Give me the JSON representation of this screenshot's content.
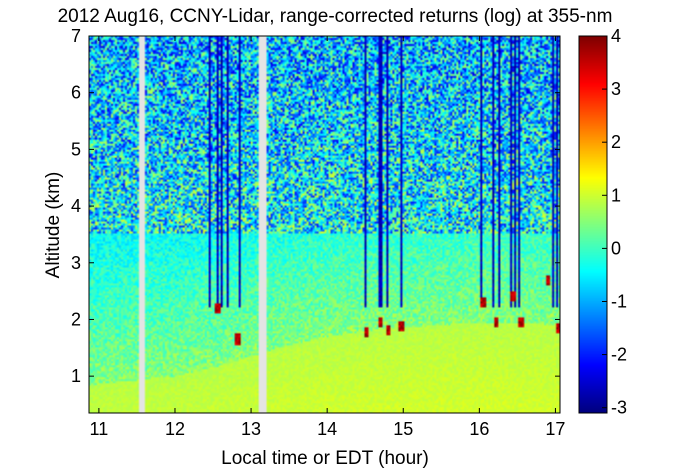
{
  "chart_data": {
    "type": "heatmap",
    "title": "2012 Aug16, CCNY-Lidar, range-corrected returns (log) at 355-nm",
    "xlabel": "Local time or EDT (hour)",
    "ylabel": "Altitude (km)",
    "xlim": [
      10.87,
      17.06
    ],
    "ylim": [
      0.35,
      7.0
    ],
    "xticks": [
      "11",
      "12",
      "13",
      "14",
      "15",
      "16",
      "17"
    ],
    "yticks": [
      "1",
      "2",
      "3",
      "4",
      "5",
      "6",
      "7"
    ],
    "colorbar": {
      "range": [
        -3.1,
        4.0
      ],
      "ticks": [
        "-3",
        "-2",
        "-1",
        "0",
        "1",
        "2",
        "3",
        "4"
      ],
      "colormap": "jet"
    },
    "data_gaps_hours": [
      [
        11.52,
        11.6
      ],
      [
        13.1,
        13.21
      ]
    ],
    "features": {
      "boundary_layer_top_km": [
        [
          10.9,
          0.85
        ],
        [
          11.5,
          0.93
        ],
        [
          12.0,
          1.0
        ],
        [
          12.5,
          1.15
        ],
        [
          13.0,
          1.35
        ],
        [
          13.5,
          1.55
        ],
        [
          14.0,
          1.7
        ],
        [
          14.5,
          1.8
        ],
        [
          15.0,
          1.85
        ],
        [
          15.5,
          1.9
        ],
        [
          16.0,
          1.95
        ],
        [
          16.5,
          1.95
        ],
        [
          17.0,
          1.9
        ]
      ],
      "cloud_layers": [
        {
          "x": 12.57,
          "altitude_km": 2.2
        },
        {
          "x": 12.83,
          "altitude_km": 1.65
        },
        {
          "x": 14.52,
          "altitude_km": 1.78
        },
        {
          "x": 14.7,
          "altitude_km": 1.95
        },
        {
          "x": 14.8,
          "altitude_km": 1.82
        },
        {
          "x": 14.98,
          "altitude_km": 1.87
        },
        {
          "x": 16.05,
          "altitude_km": 2.3
        },
        {
          "x": 16.22,
          "altitude_km": 1.95
        },
        {
          "x": 16.45,
          "altitude_km": 2.4
        },
        {
          "x": 16.55,
          "altitude_km": 1.95
        },
        {
          "x": 16.9,
          "altitude_km": 2.7
        },
        {
          "x": 17.03,
          "altitude_km": 1.85
        }
      ],
      "streaks": [
        12.45,
        12.55,
        12.62,
        12.7,
        12.85,
        14.5,
        14.62,
        14.68,
        14.72,
        14.8,
        14.98,
        16.02,
        16.18,
        16.22,
        16.27,
        16.42,
        16.47,
        16.53,
        16.98,
        17.03
      ]
    }
  }
}
